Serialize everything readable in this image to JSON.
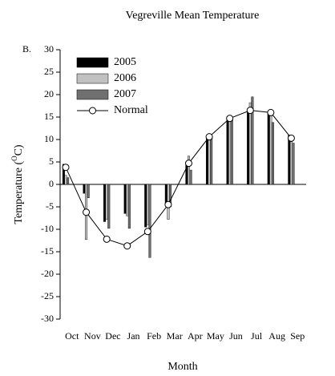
{
  "chart_data": {
    "type": "bar",
    "title": "Vegreville Mean Temperature",
    "annotation": "B.",
    "ylabel": [
      "Temperature (",
      "O",
      "C)"
    ],
    "xlabel": "Month",
    "categories": [
      "Oct",
      "Nov",
      "Dec",
      "Jan",
      "Feb",
      "Mar",
      "Apr",
      "May",
      "Jun",
      "Jul",
      "Aug",
      "Sep"
    ],
    "series": [
      {
        "name": "2005",
        "color": "#000000",
        "values": [
          4.5,
          -2,
          -8.3,
          -6.5,
          -9.5,
          -4.5,
          5,
          10.2,
          15,
          16.5,
          15.8,
          11
        ]
      },
      {
        "name": "2006",
        "color": "#c0c0c0",
        "values": [
          2,
          -12.3,
          -7.8,
          -7,
          -9,
          -7.8,
          6.3,
          11,
          15.3,
          18.2,
          16.4,
          9.5
        ]
      },
      {
        "name": "2007",
        "color": "#707070",
        "values": [
          1.5,
          -3,
          -9.8,
          -9.8,
          -16.3,
          -5,
          3.2,
          10.3,
          14.8,
          19.5,
          13.8,
          9.2
        ]
      },
      {
        "name": "Normal",
        "type": "line",
        "color": "#000000",
        "values": [
          3.8,
          -6.2,
          -12.2,
          -13.7,
          -10.5,
          -4.5,
          4.7,
          10.6,
          14.7,
          16.5,
          16.0,
          10.3
        ]
      }
    ],
    "ylim": [
      -30,
      30
    ],
    "yticks": [
      -30,
      -25,
      -20,
      -15,
      -10,
      -5,
      0,
      5,
      10,
      15,
      20,
      25,
      30
    ],
    "legend": "upper left"
  }
}
